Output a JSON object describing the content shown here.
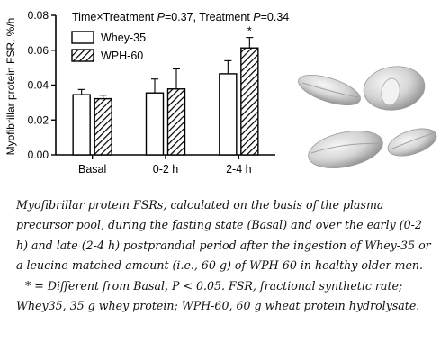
{
  "chart_data": {
    "type": "bar",
    "title": "Time×Treatment P=0.37, Treatment P=0.34",
    "title_parts": {
      "interaction_label": "Time×Treatment ",
      "interaction_p_symbol": "P",
      "interaction_p_value": "=0.37, Treatment ",
      "treatment_p_symbol": "P",
      "treatment_p_value": "=0.34"
    },
    "ylabel": "Myofibrillar protein FSR, %/h",
    "xlabel": "",
    "categories": [
      "Basal",
      "0-2 h",
      "2-4 h"
    ],
    "ylim": [
      0.0,
      0.08
    ],
    "yticks": [
      "0.00",
      "0.02",
      "0.04",
      "0.06",
      "0.08"
    ],
    "ytick_values": [
      0.0,
      0.02,
      0.04,
      0.06,
      0.08
    ],
    "series": [
      {
        "name": "Whey-35",
        "values": [
          0.0345,
          0.0355,
          0.0465
        ],
        "errors": [
          0.003,
          0.008,
          0.0075
        ],
        "fill": "open"
      },
      {
        "name": "WPH-60",
        "values": [
          0.0322,
          0.0378,
          0.0613
        ],
        "errors": [
          0.002,
          0.0115,
          0.006
        ],
        "fill": "hatched"
      }
    ],
    "annotations": [
      {
        "text": "*",
        "category": "2-4 h",
        "series": "WPH-60"
      }
    ],
    "legend_position": "top-left",
    "grid": false
  },
  "caption": {
    "text": "Myofibrillar protein FSRs, calculated on the basis of the plasma precursor pool, during the fasting state (Basal) and over the early (0-2 h) and late (2-4 h) postprandial period after the ingestion of Whey-35 or a leucine-matched amount (i.e., 60 g) of WPH-60 in healthy older men.",
    "note": "* = Different from Basal, P < 0.05. FSR, fractional synthetic rate; Whey35, 35 g whey protein; WPH-60, 60 g wheat protein hydrolysate."
  },
  "colors": {
    "axis": "#000000",
    "bar_fill": "#ffffff",
    "hatch": "#000000",
    "grain_light": "#e9e9e9",
    "grain_mid": "#c9c9c9",
    "grain_dark": "#8e8e8e"
  },
  "image": {
    "description_icon": "wheat-grains-icon"
  }
}
